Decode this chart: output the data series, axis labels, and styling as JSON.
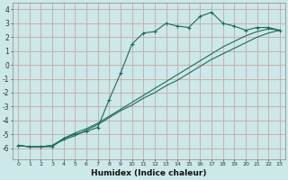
{
  "xlabel": "Humidex (Indice chaleur)",
  "bg_color": "#cce8e8",
  "grid_color": "#c8a8a8",
  "line_color": "#1a6b5a",
  "xlim": [
    -0.5,
    23.5
  ],
  "ylim": [
    -6.8,
    4.5
  ],
  "yticks": [
    -6,
    -5,
    -4,
    -3,
    -2,
    -1,
    0,
    1,
    2,
    3,
    4
  ],
  "xticks": [
    0,
    1,
    2,
    3,
    4,
    5,
    6,
    7,
    8,
    9,
    10,
    11,
    12,
    13,
    14,
    15,
    16,
    17,
    18,
    19,
    20,
    21,
    22,
    23
  ],
  "line1_x": [
    0,
    1,
    2,
    3,
    4,
    5,
    6,
    7,
    8,
    9,
    10,
    11,
    12,
    13,
    14,
    15,
    16,
    17,
    18,
    19,
    20,
    21,
    22,
    23
  ],
  "line1_y": [
    -5.8,
    -5.9,
    -5.9,
    -5.9,
    -5.3,
    -5.0,
    -4.8,
    -4.5,
    -2.5,
    -0.6,
    1.5,
    2.3,
    2.4,
    3.0,
    2.8,
    2.7,
    3.5,
    3.8,
    3.0,
    2.8,
    2.5,
    2.7,
    2.7,
    2.5
  ],
  "line2_x": [
    0,
    1,
    2,
    3,
    4,
    5,
    6,
    7,
    8,
    9,
    10,
    11,
    12,
    13,
    14,
    15,
    16,
    17,
    18,
    19,
    20,
    21,
    22,
    23
  ],
  "line2_y": [
    -5.8,
    -5.9,
    -5.9,
    -5.8,
    -5.4,
    -5.1,
    -4.7,
    -4.3,
    -3.8,
    -3.3,
    -2.9,
    -2.4,
    -2.0,
    -1.5,
    -1.1,
    -0.6,
    -0.1,
    0.4,
    0.8,
    1.2,
    1.6,
    2.0,
    2.3,
    2.5
  ],
  "line3_x": [
    0,
    1,
    2,
    3,
    4,
    5,
    6,
    7,
    8,
    9,
    10,
    11,
    12,
    13,
    14,
    15,
    16,
    17,
    18,
    19,
    20,
    21,
    22,
    23
  ],
  "line3_y": [
    -5.8,
    -5.9,
    -5.9,
    -5.8,
    -5.3,
    -4.9,
    -4.6,
    -4.2,
    -3.7,
    -3.2,
    -2.7,
    -2.2,
    -1.7,
    -1.2,
    -0.7,
    -0.2,
    0.3,
    0.8,
    1.3,
    1.7,
    2.1,
    2.4,
    2.6,
    2.5
  ]
}
